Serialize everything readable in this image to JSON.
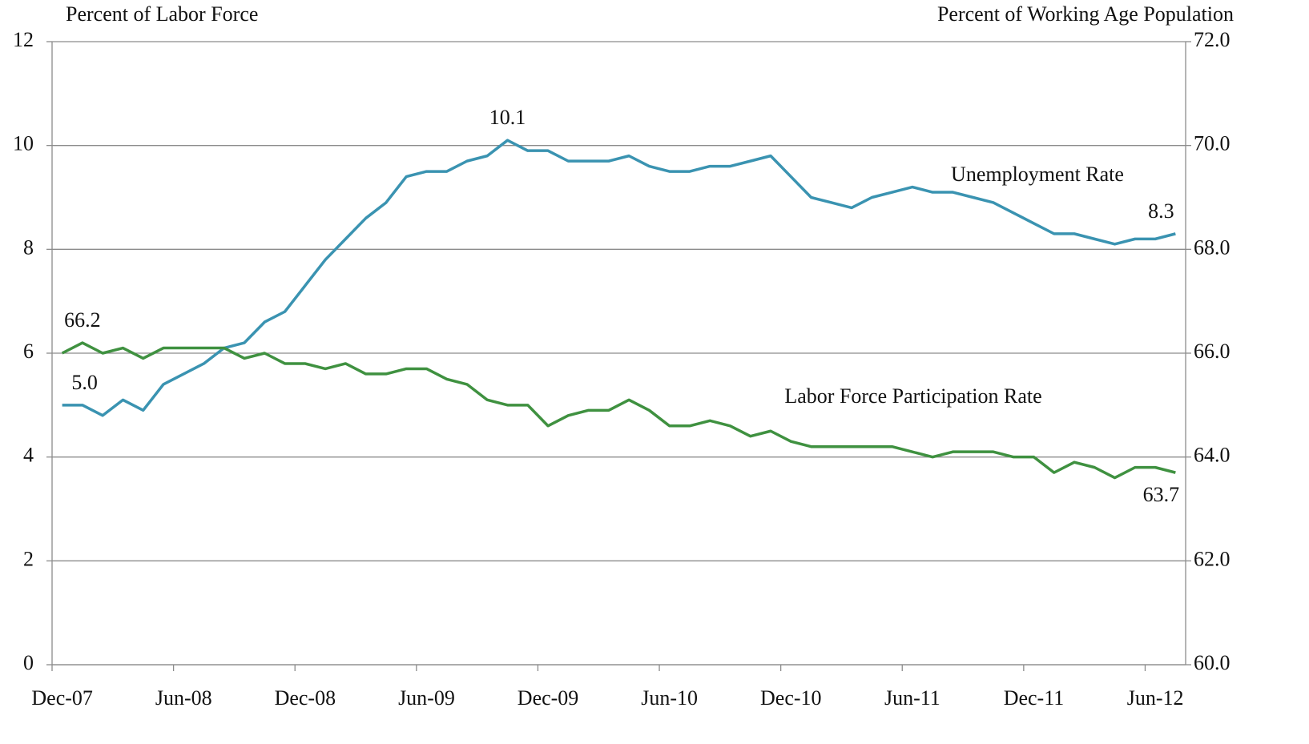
{
  "chart_data": {
    "type": "line",
    "y_label": "Percent of Labor Force",
    "y2_label": "Percent of Working Age Population",
    "categories": [
      "Dec-07",
      null,
      null,
      null,
      null,
      null,
      "Jun-08",
      null,
      null,
      null,
      null,
      null,
      "Dec-08",
      null,
      null,
      null,
      null,
      null,
      "Jun-09",
      null,
      null,
      null,
      null,
      null,
      "Dec-09",
      null,
      null,
      null,
      null,
      null,
      "Jun-10",
      null,
      null,
      null,
      null,
      null,
      "Dec-10",
      null,
      null,
      null,
      null,
      null,
      "Jun-11",
      null,
      null,
      null,
      null,
      null,
      "Dec-11",
      null,
      null,
      null,
      null,
      null,
      "Jun-12",
      null
    ],
    "ylim": [
      0,
      12
    ],
    "yticks": [
      0,
      2,
      4,
      6,
      8,
      10,
      12
    ],
    "y2lim": [
      60,
      72
    ],
    "y2ticks": [
      {
        "value": 60,
        "label": "60.0"
      },
      {
        "value": 62,
        "label": "62.0"
      },
      {
        "value": 64,
        "label": "64.0"
      },
      {
        "value": 66,
        "label": "66.0"
      },
      {
        "value": 68,
        "label": "68.0"
      },
      {
        "value": 70,
        "label": "70.0"
      },
      {
        "value": 72,
        "label": "72.0"
      }
    ],
    "grid": true,
    "series": [
      {
        "name": "Unemployment Rate",
        "color": "#3a93b1",
        "values": [
          5.0,
          5.0,
          4.8,
          5.1,
          4.9,
          5.4,
          5.6,
          5.8,
          6.1,
          6.2,
          6.6,
          6.8,
          7.3,
          7.8,
          8.2,
          8.6,
          8.9,
          9.4,
          9.5,
          9.5,
          9.7,
          9.8,
          10.1,
          9.9,
          9.9,
          9.7,
          9.7,
          9.7,
          9.8,
          9.6,
          9.5,
          9.5,
          9.6,
          9.6,
          9.7,
          9.8,
          9.4,
          9.0,
          8.9,
          8.8,
          9.0,
          9.1,
          9.2,
          9.1,
          9.1,
          9.0,
          8.9,
          8.7,
          8.5,
          8.3,
          8.3,
          8.2,
          8.1,
          8.2,
          8.2,
          8.3
        ],
        "value_labels": [
          "5.0",
          null,
          null,
          null,
          null,
          null,
          null,
          null,
          null,
          null,
          null,
          null,
          null,
          null,
          null,
          null,
          null,
          null,
          null,
          null,
          null,
          null,
          "10.1",
          null,
          null,
          null,
          null,
          null,
          null,
          null,
          null,
          null,
          null,
          null,
          null,
          null,
          null,
          null,
          null,
          null,
          null,
          null,
          null,
          null,
          null,
          null,
          null,
          null,
          null,
          null,
          null,
          null,
          null,
          null,
          null,
          "8.3"
        ]
      },
      {
        "name": "Labor Force Participation Rate",
        "color": "#3f9140",
        "axis": "y2",
        "values": [
          66.0,
          66.2,
          66.0,
          66.1,
          65.9,
          66.1,
          66.1,
          66.1,
          66.1,
          65.9,
          66.0,
          65.8,
          65.8,
          65.7,
          65.8,
          65.6,
          65.6,
          65.7,
          65.7,
          65.5,
          65.4,
          65.1,
          65.0,
          65.0,
          64.6,
          64.8,
          64.9,
          64.9,
          65.1,
          64.9,
          64.6,
          64.6,
          64.7,
          64.6,
          64.4,
          64.5,
          64.3,
          64.2,
          64.2,
          64.2,
          64.2,
          64.2,
          64.1,
          64.0,
          64.1,
          64.1,
          64.1,
          64.0,
          64.0,
          63.7,
          63.9,
          63.8,
          63.6,
          63.8,
          63.8,
          63.7
        ],
        "value_labels": [
          null,
          "66.2",
          null,
          null,
          null,
          null,
          null,
          null,
          null,
          null,
          null,
          null,
          null,
          null,
          null,
          null,
          null,
          null,
          null,
          null,
          null,
          null,
          null,
          null,
          null,
          null,
          null,
          null,
          null,
          null,
          null,
          null,
          null,
          null,
          null,
          null,
          null,
          null,
          null,
          null,
          null,
          null,
          null,
          null,
          null,
          null,
          null,
          null,
          null,
          null,
          null,
          null,
          null,
          null,
          null,
          "63.7"
        ]
      }
    ]
  }
}
